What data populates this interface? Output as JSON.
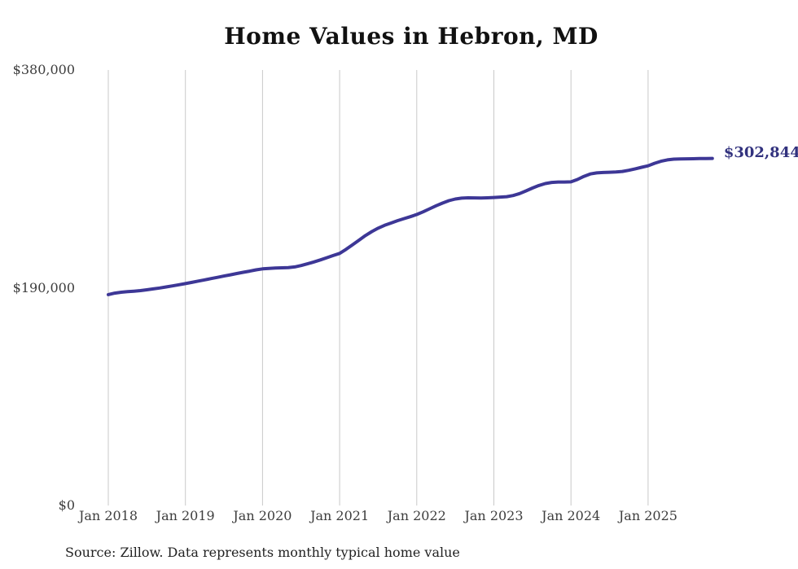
{
  "chart_data": {
    "type": "line",
    "title": "Home Values in Hebron, MD",
    "series_name": "Monthly typical home value",
    "unit": "USD",
    "interval": "monthly",
    "x_start": "Jan 2018",
    "x_end": "Nov 2025",
    "x_tick_labels": [
      "Jan 2018",
      "Jan 2019",
      "Jan 2020",
      "Jan 2021",
      "Jan 2022",
      "Jan 2023",
      "Jan 2024",
      "Jan 2025"
    ],
    "x_tick_month_index": [
      0,
      12,
      24,
      36,
      48,
      60,
      72,
      84
    ],
    "y_ticks": [
      {
        "label": "$0",
        "value": 0
      },
      {
        "label": "$190,000",
        "value": 190000
      },
      {
        "label": "$380,000",
        "value": 380000
      }
    ],
    "ylim": [
      0,
      380000
    ],
    "grid": "vertical-only",
    "legend": "none",
    "end_label": "$302,844",
    "end_value": 302844,
    "line_color": "#3d3796",
    "end_label_color": "#32327e",
    "gridline_color": "#c9c9c9",
    "axis_label_color": "#3d3d3d",
    "values": [
      184000,
      185300,
      186100,
      186600,
      187000,
      187500,
      188200,
      189000,
      189800,
      190700,
      191600,
      192600,
      193600,
      194700,
      195800,
      196900,
      198000,
      199100,
      200200,
      201300,
      202400,
      203500,
      204500,
      205600,
      206500,
      206900,
      207200,
      207400,
      207600,
      208200,
      209400,
      210900,
      212500,
      214300,
      216200,
      218100,
      220000,
      223500,
      227500,
      231500,
      235500,
      239000,
      242000,
      244500,
      246500,
      248500,
      250300,
      252000,
      253900,
      256300,
      258900,
      261500,
      263900,
      266000,
      267400,
      268200,
      268500,
      268400,
      268300,
      268500,
      268800,
      269100,
      269500,
      270500,
      272200,
      274500,
      277000,
      279200,
      280900,
      281900,
      282300,
      282300,
      282400,
      284500,
      287200,
      289300,
      290200,
      290600,
      290800,
      291000,
      291500,
      292500,
      293800,
      295100,
      296400,
      298600,
      300400,
      301600,
      302200,
      302400,
      302500,
      302600,
      302700,
      302800,
      302844
    ]
  },
  "source_note": "Source: Zillow. Data represents monthly typical home value"
}
